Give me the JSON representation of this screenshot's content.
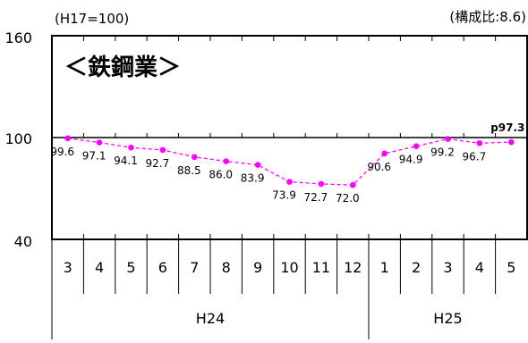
{
  "chart_data": {
    "type": "line",
    "title": "＜鉄鋼業＞",
    "base_note": "(H17=100)",
    "share_note": "(構成比:8.6)",
    "ylim": [
      40,
      160
    ],
    "yticks": [
      40,
      100,
      160
    ],
    "reference_line": 100,
    "categories": [
      "3",
      "4",
      "5",
      "6",
      "7",
      "8",
      "9",
      "10",
      "11",
      "12",
      "1",
      "2",
      "3",
      "4",
      "5"
    ],
    "year_groups": [
      {
        "label": "H24",
        "start_index": 0,
        "count": 10
      },
      {
        "label": "H25",
        "start_index": 10,
        "count": 5
      }
    ],
    "series": [
      {
        "values": [
          99.6,
          97.1,
          94.1,
          92.7,
          88.5,
          86.0,
          83.9,
          73.9,
          72.7,
          72.0,
          90.6,
          94.9,
          99.2,
          96.7,
          97.3
        ]
      }
    ],
    "value_labels": [
      "99.6",
      "97.1",
      "94.1",
      "92.7",
      "88.5",
      "86.0",
      "83.9",
      "73.9",
      "72.7",
      "72.0",
      "90.6",
      "94.9",
      "99.2",
      "96.7",
      "p97.3"
    ],
    "grid": false,
    "colors": {
      "series_line": "#ff00ff",
      "series_marker": "#ff00ff",
      "axis": "#000000",
      "reference_line": "#000000",
      "text": "#000000"
    }
  }
}
